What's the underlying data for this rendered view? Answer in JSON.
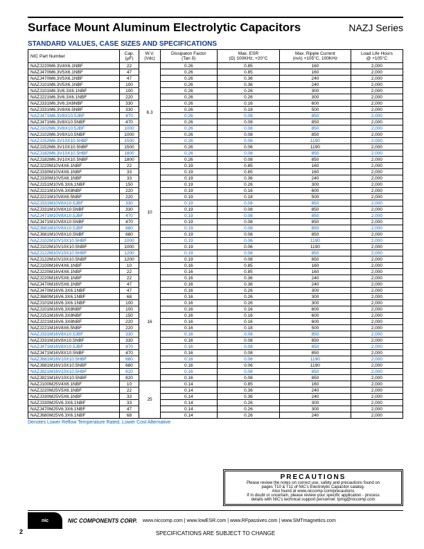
{
  "header": {
    "title": "Surface Mount Aluminum Electrolytic Capacitors",
    "series": "NAZJ Series"
  },
  "subtitle": "STANDARD VALUES, CASE SIZES AND SPECIFICATIONS",
  "columns": [
    "NIC Part Number",
    "Cap. (µF)",
    "W.V. (Vdc)",
    "Dissipaton Factor (Tan δ)",
    "Max. ESR (Ω) 100KHz, +20°C",
    "Max. Ripple Current (mA) +105°C, 100KHz",
    "Load Life Hours @ +105°C"
  ],
  "groups": [
    {
      "wv": "6.3",
      "rows": [
        [
          "NAZJ220M6.3V4X6.1NBF",
          "22",
          "0.26",
          "0.85",
          "160",
          "2,000",
          false
        ],
        [
          "NAZJ470M6.3V5X6.1NBF",
          "47",
          "0.26",
          "0.85",
          "160",
          "2,000",
          false
        ],
        [
          "NAZJ470M6.3V5X6.1NBF",
          "47",
          "0.26",
          "0.36",
          "240",
          "2,000",
          false
        ],
        [
          "NAZJ101M6.3V5X6.1NBF",
          "100",
          "0.26",
          "0.36",
          "240",
          "2,000",
          false
        ],
        [
          "NAZJ101M6.3V6.3X6.1NBF",
          "100",
          "0.26",
          "0.26",
          "300",
          "2,000",
          false
        ],
        [
          "NAZJ221M6.3V6.3X6.1NBF",
          "220",
          "0.26",
          "0.26",
          "300",
          "2,000",
          false
        ],
        [
          "NAZJ331M6.3V6.3X8NBF",
          "330",
          "0.26",
          "0.16",
          "600",
          "2,000",
          false
        ],
        [
          "NAZJ331M6.3V8X6.5NBF",
          "330",
          "0.26",
          "0.18",
          "500",
          "2,000",
          false
        ],
        [
          "NAZJ471M6.3V8X10.5JBF",
          "470",
          "0.26",
          "0.08",
          "850",
          "2,000",
          true
        ],
        [
          "NAZJ471M6.3V8X10.5NBF",
          "470",
          "0.26",
          "0.08",
          "850",
          "2,000",
          false
        ],
        [
          "NAZJ102M6.3V8X10.5JBF",
          "1000",
          "0.26",
          "0.08",
          "850",
          "2,000",
          true
        ],
        [
          "NAZJ102M6.3V8X10.5NBF",
          "1000",
          "0.26",
          "0.08",
          "850",
          "2,000",
          false
        ],
        [
          "NAZJ152M6.3V10X10.5HBF",
          "1500",
          "0.26",
          "0.06",
          "1190",
          "2,000",
          true
        ],
        [
          "NAZJ152M6.3V10X10.5NBF",
          "1500",
          "0.26",
          "0.06",
          "1190",
          "2,000",
          false
        ],
        [
          "NAZJ182M6.3V10X10.5HBF",
          "1800",
          "0.26",
          "0.08",
          "850",
          "2,000",
          true
        ],
        [
          "NAZJ182M6.3V10X10.5NBF",
          "1800",
          "0.26",
          "0.08",
          "850",
          "2,000",
          false
        ]
      ]
    },
    {
      "wv": "10",
      "rows": [
        [
          "NAZJ220M10V4X6.1NBF",
          "22",
          "0.19",
          "0.85",
          "160",
          "2,000",
          false
        ],
        [
          "NAZJ330M10V4X6.1NBF",
          "33",
          "0.19",
          "0.85",
          "160",
          "2,000",
          false
        ],
        [
          "NAZJ330M10V5X6.1NBF",
          "33",
          "0.19",
          "0.36",
          "240",
          "2,000",
          false
        ],
        [
          "NAZJ151M10V6.3X6.1NBF",
          "150",
          "0.19",
          "0.26",
          "300",
          "2,000",
          false
        ],
        [
          "NAZJ221M10V6.3X8NBF",
          "220",
          "0.19",
          "0.16",
          "600",
          "2,000",
          false
        ],
        [
          "NAZJ221M10V8X6.5NBF",
          "220",
          "0.19",
          "0.18",
          "500",
          "2,000",
          false
        ],
        [
          "NAZJ331M10V8X10.5JBF",
          "330",
          "0.19",
          "0.08",
          "850",
          "2,000",
          true
        ],
        [
          "NAZJ331M10V8X10.5NBF",
          "330",
          "0.19",
          "0.08",
          "850",
          "2,000",
          false
        ],
        [
          "NAZJ471M10V8X10.5JBF",
          "470",
          "0.19",
          "0.08",
          "850",
          "2,000",
          true
        ],
        [
          "NAZJ471M10V8X10.5NBF",
          "470",
          "0.19",
          "0.08",
          "850",
          "2,000",
          false
        ],
        [
          "NAZJ681M10V8X10.5JBF",
          "680",
          "0.19",
          "0.08",
          "850",
          "2,000",
          true
        ],
        [
          "NAZJ681M10V8X10.5NBF",
          "680",
          "0.19",
          "0.08",
          "850",
          "2,000",
          false
        ],
        [
          "NAZJ102M10V10X10.5HBF",
          "1000",
          "0.19",
          "0.06",
          "1190",
          "2,000",
          true
        ],
        [
          "NAZJ102M10V10X10.5NBF",
          "1000",
          "0.19",
          "0.06",
          "1190",
          "2,000",
          false
        ],
        [
          "NAZJ122M10V10X10.5HBF",
          "1200",
          "0.19",
          "0.08",
          "850",
          "2,000",
          true
        ],
        [
          "NAZJ122M10V10X10.5NBF",
          "1200",
          "0.19",
          "0.08",
          "850",
          "2,000",
          false
        ]
      ]
    },
    {
      "wv": "16",
      "rows": [
        [
          "NAZJ100M16V4X6.1NBF",
          "10",
          "0.16",
          "0.85",
          "160",
          "2,000",
          false
        ],
        [
          "NAZJ220M16V4X6.1NBF",
          "22",
          "0.16",
          "0.85",
          "160",
          "2,000",
          false
        ],
        [
          "NAZJ220M16V5X6.1NBF",
          "22",
          "0.16",
          "0.36",
          "240",
          "2,000",
          false
        ],
        [
          "NAZJ470M16V5X6.1NBF",
          "47",
          "0.16",
          "0.36",
          "240",
          "2,000",
          false
        ],
        [
          "NAZJ470M16V6.3X6.1NBF",
          "47",
          "0.16",
          "0.26",
          "300",
          "2,000",
          false
        ],
        [
          "NAZJ680M16V6.3X6.1NBF",
          "68",
          "0.16",
          "0.26",
          "300",
          "2,000",
          false
        ],
        [
          "NAZJ101M16V6.3X6.1NBF",
          "100",
          "0.16",
          "0.26",
          "300",
          "2,000",
          false
        ],
        [
          "NAZJ101M16V6.3X8NBF",
          "100",
          "0.16",
          "0.16",
          "600",
          "2,000",
          false
        ],
        [
          "NAZJ151M16V6.3X8NBF",
          "150",
          "0.16",
          "0.16",
          "600",
          "2,000",
          false
        ],
        [
          "NAZJ221M16V6.3X8NBF",
          "220",
          "0.16",
          "0.16",
          "600",
          "2,000",
          false
        ],
        [
          "NAZJ221M16V8X6.5NBF",
          "220",
          "0.16",
          "0.18",
          "500",
          "2,000",
          false
        ],
        [
          "NAZJ331M16V8X10.5JBF",
          "330",
          "0.16",
          "0.08",
          "850",
          "2,000",
          true
        ],
        [
          "NAZJ331M16V8X10.5NBF",
          "330",
          "0.16",
          "0.08",
          "850",
          "2,000",
          false
        ],
        [
          "NAZJ471M16V8X10.5JBF",
          "470",
          "0.16",
          "0.08",
          "850",
          "2,000",
          true
        ],
        [
          "NAZJ471M16V8X10.5NBF",
          "470",
          "0.16",
          "0.08",
          "850",
          "2,000",
          false
        ],
        [
          "NAZJ681M16V10X10.5HBF",
          "680",
          "0.16",
          "0.06",
          "1190",
          "2,000",
          true
        ],
        [
          "NAZJ681M16V10X10.5NBF",
          "680",
          "0.16",
          "0.06",
          "1190",
          "2,000",
          false
        ],
        [
          "NAZJ821M16V10X10.5HBF",
          "820",
          "0.16",
          "0.08",
          "850",
          "2,000",
          true
        ],
        [
          "NAZJ821M16V10X10.5NBF",
          "820",
          "0.16",
          "0.08",
          "850",
          "2,000",
          false
        ]
      ]
    },
    {
      "wv": "25",
      "rows": [
        [
          "NAZJ100M25V4X6.1NBF",
          "10",
          "0.14",
          "0.85",
          "160",
          "2,000",
          false
        ],
        [
          "NAZJ220M25V5X6.1NBF",
          "22",
          "0.14",
          "0.36",
          "240",
          "2,000",
          false
        ],
        [
          "NAZJ330M25V5X6.1NBF",
          "33",
          "0.14",
          "0.36",
          "240",
          "2,000",
          false
        ],
        [
          "NAZJ330M25V6.3X6.1NBF",
          "33",
          "0.14",
          "0.26",
          "300",
          "2,000",
          false
        ],
        [
          "NAZJ470M25V6.3X6.1NBF",
          "47",
          "0.14",
          "0.26",
          "300",
          "2,000",
          false
        ],
        [
          "NAZJ680M25V6.3X6.1NBF",
          "68",
          "0.14",
          "0.26",
          "240",
          "2,000",
          false
        ]
      ]
    }
  ],
  "note": "Denotes Lower Reflow Temperature Rated, Lower Cost Alternative",
  "precautions": {
    "title": "PRECAUTIONS",
    "lines": [
      "Please review the notes on correct use, safety and precautions found on",
      "pages T10 & T11 of NIC's Electrolytic Capacitor catalog.",
      "Also found at www.niccomp.com/precautions",
      "If in doubt or uncertain, please review your specific application - process",
      "details with NIC's technical support personnel: tpmg@niccomp.com"
    ]
  },
  "footer": {
    "corp": "NIC COMPONENTS CORP.",
    "sites": "www.niccomp.com  |  www.lowESR.com  |  www.RFpassives.com  |  www.SMTmagnetics.com",
    "spec": "SPECIFICATIONS ARE SUBJECT TO CHANGE",
    "page": "2"
  }
}
